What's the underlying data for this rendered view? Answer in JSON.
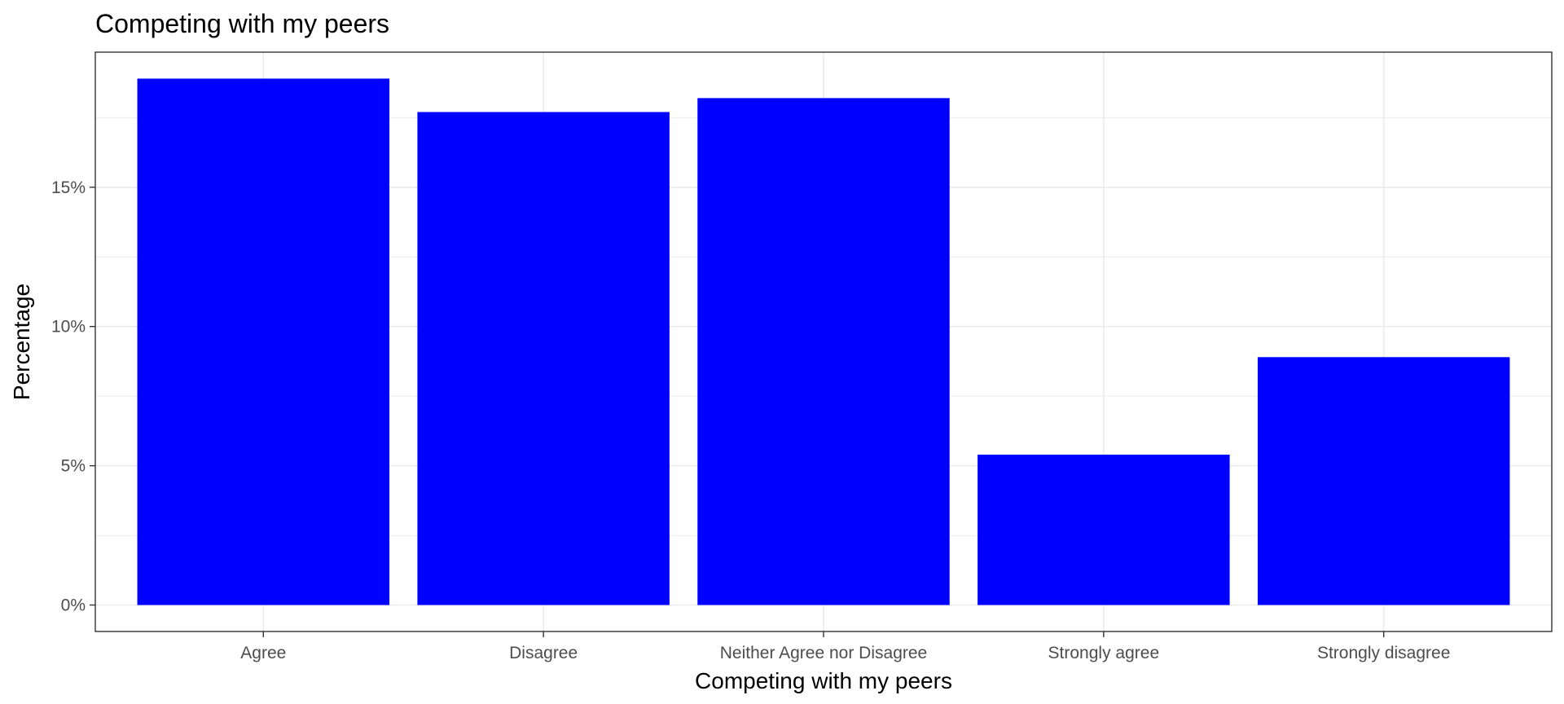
{
  "chart_data": {
    "type": "bar",
    "title": "Competing with my peers",
    "xlabel": "Competing with my peers",
    "ylabel": "Percentage",
    "categories": [
      "Agree",
      "Disagree",
      "Neither Agree nor Disagree",
      "Strongly agree",
      "Strongly disagree"
    ],
    "values": [
      18.9,
      17.7,
      18.2,
      5.4,
      8.9
    ],
    "ylim": [
      -0.95,
      19.85
    ],
    "yticks": [
      0,
      5,
      10,
      15
    ],
    "ytick_labels": [
      "0%",
      "5%",
      "10%",
      "15%"
    ],
    "bar_color": "#0000ff",
    "grid": true,
    "legend": "none"
  }
}
